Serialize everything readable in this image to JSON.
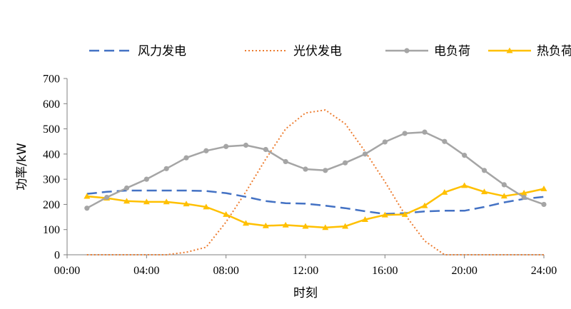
{
  "chart_data": {
    "type": "line",
    "xlabel": "时刻",
    "ylabel": "功率/kW",
    "x_ticks": [
      "00:00",
      "04:00",
      "08:00",
      "12:00",
      "16:00",
      "20:00",
      "24:00"
    ],
    "x_range_hours": [
      0,
      24
    ],
    "ylim": [
      0,
      700
    ],
    "y_ticks": [
      0,
      100,
      200,
      300,
      400,
      500,
      600,
      700
    ],
    "grid": false,
    "legend_position": "top",
    "x_hours": [
      1,
      2,
      3,
      4,
      5,
      6,
      7,
      8,
      9,
      10,
      11,
      12,
      13,
      14,
      15,
      16,
      17,
      18,
      19,
      20,
      21,
      22,
      23,
      24
    ],
    "series": [
      {
        "name": "风力发电",
        "style": "dashed",
        "marker": "none",
        "color": "#4472C4",
        "values": [
          242,
          250,
          255,
          255,
          255,
          255,
          253,
          245,
          230,
          213,
          205,
          203,
          195,
          185,
          173,
          162,
          165,
          172,
          175,
          175,
          190,
          208,
          222,
          230
        ]
      },
      {
        "name": "光伏发电",
        "style": "dotted",
        "marker": "none",
        "color": "#ED7D31",
        "values": [
          0,
          0,
          0,
          0,
          0,
          10,
          30,
          130,
          250,
          380,
          500,
          563,
          575,
          520,
          410,
          290,
          160,
          55,
          0,
          0,
          0,
          0,
          0,
          0
        ]
      },
      {
        "name": "电负荷",
        "style": "solid",
        "marker": "circle",
        "color": "#A5A5A5",
        "values": [
          185,
          228,
          265,
          300,
          342,
          385,
          413,
          430,
          435,
          418,
          370,
          340,
          335,
          365,
          400,
          448,
          482,
          487,
          450,
          395,
          335,
          278,
          228,
          200
        ]
      },
      {
        "name": "热负荷",
        "style": "solid",
        "marker": "triangle",
        "color": "#FFC000",
        "values": [
          232,
          225,
          213,
          210,
          210,
          202,
          190,
          160,
          125,
          115,
          118,
          113,
          108,
          113,
          140,
          158,
          160,
          195,
          248,
          275,
          250,
          233,
          245,
          262
        ]
      }
    ]
  }
}
